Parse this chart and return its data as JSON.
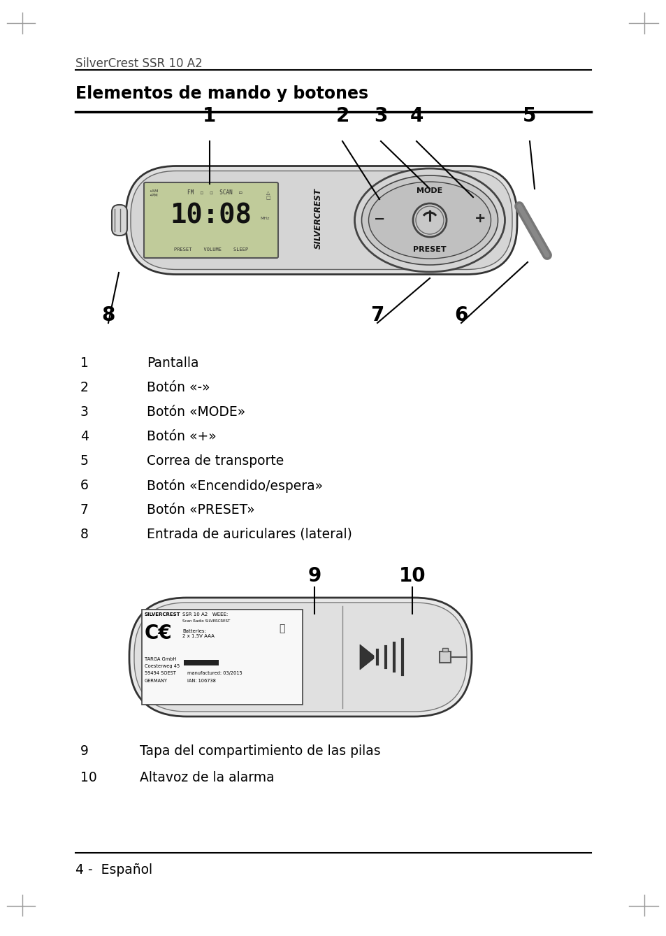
{
  "page_title": "SilverCrest SSR 10 A2",
  "section_title": "Elementos de mando y botones",
  "bg_color": "#ffffff",
  "text_color": "#000000",
  "items_top": [
    {
      "num": "1",
      "desc": "Pantalla"
    },
    {
      "num": "2",
      "desc": "Botón «-»"
    },
    {
      "num": "3",
      "desc": "Botón «MODE»"
    },
    {
      "num": "4",
      "desc": "Botón «+»"
    },
    {
      "num": "5",
      "desc": "Correa de transporte"
    },
    {
      "num": "6",
      "desc": "Botón «Encendido/espera»"
    },
    {
      "num": "7",
      "desc": "Botón «PRESET»"
    },
    {
      "num": "8",
      "desc": "Entrada de auriculares (lateral)"
    }
  ],
  "items_bottom": [
    {
      "num": "9",
      "desc": "Tapa del compartimiento de las pilas"
    },
    {
      "num": "10",
      "desc": "Altavoz de la alarma"
    }
  ],
  "footer": "4 -  Español",
  "corner_color": "#999999",
  "line_color": "#000000",
  "diagram_outline": "#333333",
  "diagram_fill": "#e8e8e8",
  "display_fill": "#c8d4b8",
  "ctrl_fill": "#d8d8d8"
}
